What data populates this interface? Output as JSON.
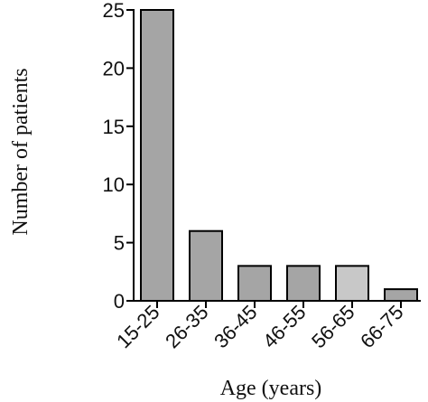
{
  "chart_data": {
    "type": "bar",
    "categories": [
      "15-25",
      "26-35",
      "36-45",
      "46-55",
      "56-65",
      "66-75"
    ],
    "values": [
      25,
      6,
      3,
      3,
      3,
      1
    ],
    "xlabel": "Age (years)",
    "ylabel": "Number of patients",
    "ylim": [
      0,
      25
    ],
    "yticks": [
      "0",
      "5",
      "10",
      "15",
      "20",
      "25"
    ],
    "grid": false,
    "legend": "none",
    "colors": {
      "bar": "#a5a5a5",
      "bar_light": "#c8c8c8",
      "stroke": "#000000"
    }
  }
}
